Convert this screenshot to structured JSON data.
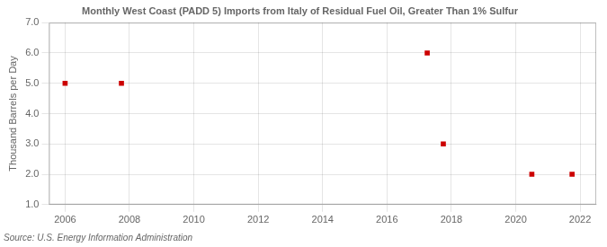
{
  "chart_data": {
    "type": "scatter",
    "title": "Monthly West Coast (PADD 5) Imports from Italy of Residual Fuel Oil, Greater Than 1% Sulfur",
    "ylabel": "Thousand Barrels per Day",
    "source": "Source: U.S. Energy Information Administration",
    "x": [
      2006.0,
      2007.75,
      2017.25,
      2017.75,
      2020.5,
      2021.75
    ],
    "values": [
      5.0,
      5.0,
      6.0,
      3.0,
      2.0,
      2.0
    ],
    "color": "#cc0000",
    "marker": "square",
    "xlim": [
      2005.5,
      2022.5
    ],
    "ylim": [
      1.0,
      7.0
    ],
    "xticks": [
      2006,
      2008,
      2010,
      2012,
      2014,
      2016,
      2018,
      2020,
      2022
    ],
    "yticks": [
      {
        "value": 1.0,
        "label": "1.0"
      },
      {
        "value": 2.0,
        "label": "2.0"
      },
      {
        "value": 3.0,
        "label": "3.0"
      },
      {
        "value": 4.0,
        "label": "4.0"
      },
      {
        "value": 5.0,
        "label": "5.0"
      },
      {
        "value": 6.0,
        "label": "6.0"
      },
      {
        "value": 7.0,
        "label": "7.0"
      }
    ],
    "grid": true
  }
}
